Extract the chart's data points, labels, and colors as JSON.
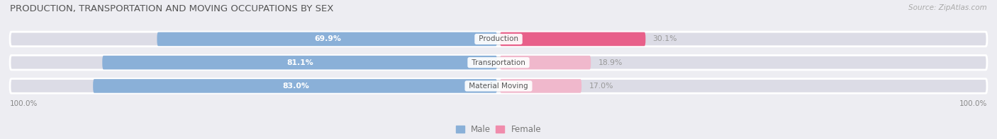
{
  "title": "PRODUCTION, TRANSPORTATION AND MOVING OCCUPATIONS BY SEX",
  "source": "Source: ZipAtlas.com",
  "categories": [
    "Material Moving",
    "Transportation",
    "Production"
  ],
  "male_values": [
    83.0,
    81.1,
    69.9
  ],
  "female_values": [
    17.0,
    18.9,
    30.1
  ],
  "male_color": "#8ab0d8",
  "female_colors": [
    "#f0b8cc",
    "#f0b8cc",
    "#e8608a"
  ],
  "female_legend_color": "#f08cac",
  "bar_bg_color": "#dcdce6",
  "title_fontsize": 9.5,
  "legend_fontsize": 8.5,
  "bar_height": 0.62,
  "x_left_label": "100.0%",
  "x_right_label": "100.0%",
  "background_color": "#ededf2"
}
